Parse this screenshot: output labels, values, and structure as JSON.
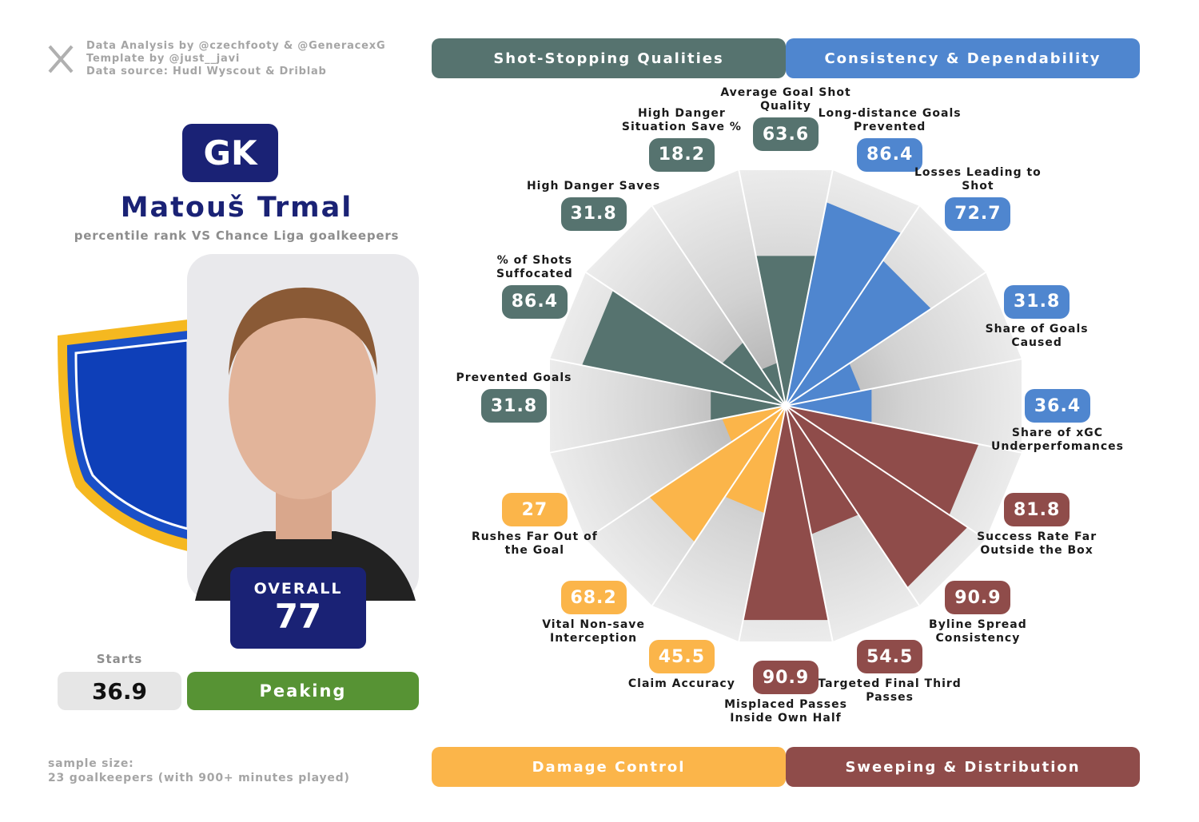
{
  "credits": [
    "Data Analysis by @czechfooty & @GeneracexG",
    "Template by @just__javi",
    "Data source: Hudl Wyscout & Driblab"
  ],
  "player": {
    "position": "GK",
    "name": "Matouš Trmal",
    "subtitle": "percentile rank VS Chance Liga goalkeepers",
    "overall_label": "OVERALL",
    "overall": 77,
    "starts_label": "Starts",
    "starts": 36.9,
    "status": "Peaking"
  },
  "footnote": [
    "sample size:",
    "23 goalkeepers (with 900+ minutes played)"
  ],
  "chart_data": {
    "type": "pizza",
    "ylim": [
      0,
      100
    ],
    "series": [
      {
        "name": "Shot-Stopping Qualities",
        "color": "#56736f",
        "categories": [
          "Prevented Goals",
          "% of Shots Suffocated",
          "High Danger Saves",
          "High Danger Situation Save %",
          "Average Goal Shot Quality"
        ],
        "values": [
          31.8,
          86.4,
          31.8,
          18.2,
          63.6
        ]
      },
      {
        "name": "Consistency & Dependability",
        "color": "#4f86cf",
        "categories": [
          "Long-distance Goals Prevented",
          "Losses Leading to Shot",
          "Share of Goals Caused",
          "Share of xGC Underperfomances"
        ],
        "values": [
          86.4,
          72.7,
          31.8,
          36.4
        ]
      },
      {
        "name": "Sweeping & Distribution",
        "color": "#8f4c4a",
        "categories": [
          "Success Rate Far Outside the Box",
          "Byline Spread Consistency",
          "Targeted Final Third Passes",
          "Misplaced Passes Inside Own Half"
        ],
        "values": [
          81.8,
          90.9,
          54.5,
          90.9
        ]
      },
      {
        "name": "Damage Control",
        "color": "#fbb54a",
        "categories": [
          "Claim Accuracy",
          "Vital Non-save Interception",
          "Rushes Far Out of the Goal"
        ],
        "values": [
          45.5,
          68.2,
          27
        ]
      }
    ]
  }
}
